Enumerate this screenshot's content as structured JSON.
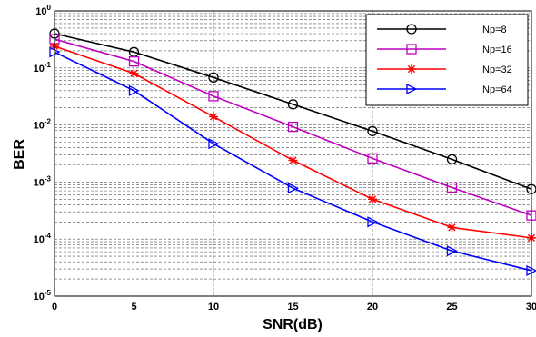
{
  "chart_data": {
    "type": "line",
    "xlabel": "SNR(dB)",
    "ylabel": "BER",
    "x": [
      0,
      5,
      10,
      15,
      20,
      25,
      30
    ],
    "xlim": [
      0,
      30
    ],
    "ylim": [
      1e-05,
      1
    ],
    "yscale": "log",
    "grid": true,
    "legend_position": "top-right",
    "x_ticks": [
      "0",
      "5",
      "10",
      "15",
      "20",
      "25",
      "30"
    ],
    "y_ticks": [
      {
        "base": "10",
        "exp": "0"
      },
      {
        "base": "10",
        "exp": "-1"
      },
      {
        "base": "10",
        "exp": "-2"
      },
      {
        "base": "10",
        "exp": "-3"
      },
      {
        "base": "10",
        "exp": "-4"
      },
      {
        "base": "10",
        "exp": "-5"
      }
    ],
    "series": [
      {
        "name": "Np=8",
        "color": "#000000",
        "marker": "circle",
        "values": [
          0.4,
          0.19,
          0.068,
          0.023,
          0.0078,
          0.0025,
          0.00075
        ]
      },
      {
        "name": "Np=16",
        "color": "#c000c0",
        "marker": "square",
        "values": [
          0.32,
          0.13,
          0.032,
          0.0093,
          0.0026,
          0.0008,
          0.00026
        ]
      },
      {
        "name": "Np=32",
        "color": "#ff0000",
        "marker": "asterisk",
        "values": [
          0.24,
          0.08,
          0.014,
          0.0024,
          0.0005,
          0.00016,
          0.000105
        ]
      },
      {
        "name": "Np=64",
        "color": "#0000ff",
        "marker": "triangle",
        "values": [
          0.19,
          0.04,
          0.0047,
          0.00078,
          0.0002,
          6.2e-05,
          2.8e-05
        ]
      }
    ]
  }
}
